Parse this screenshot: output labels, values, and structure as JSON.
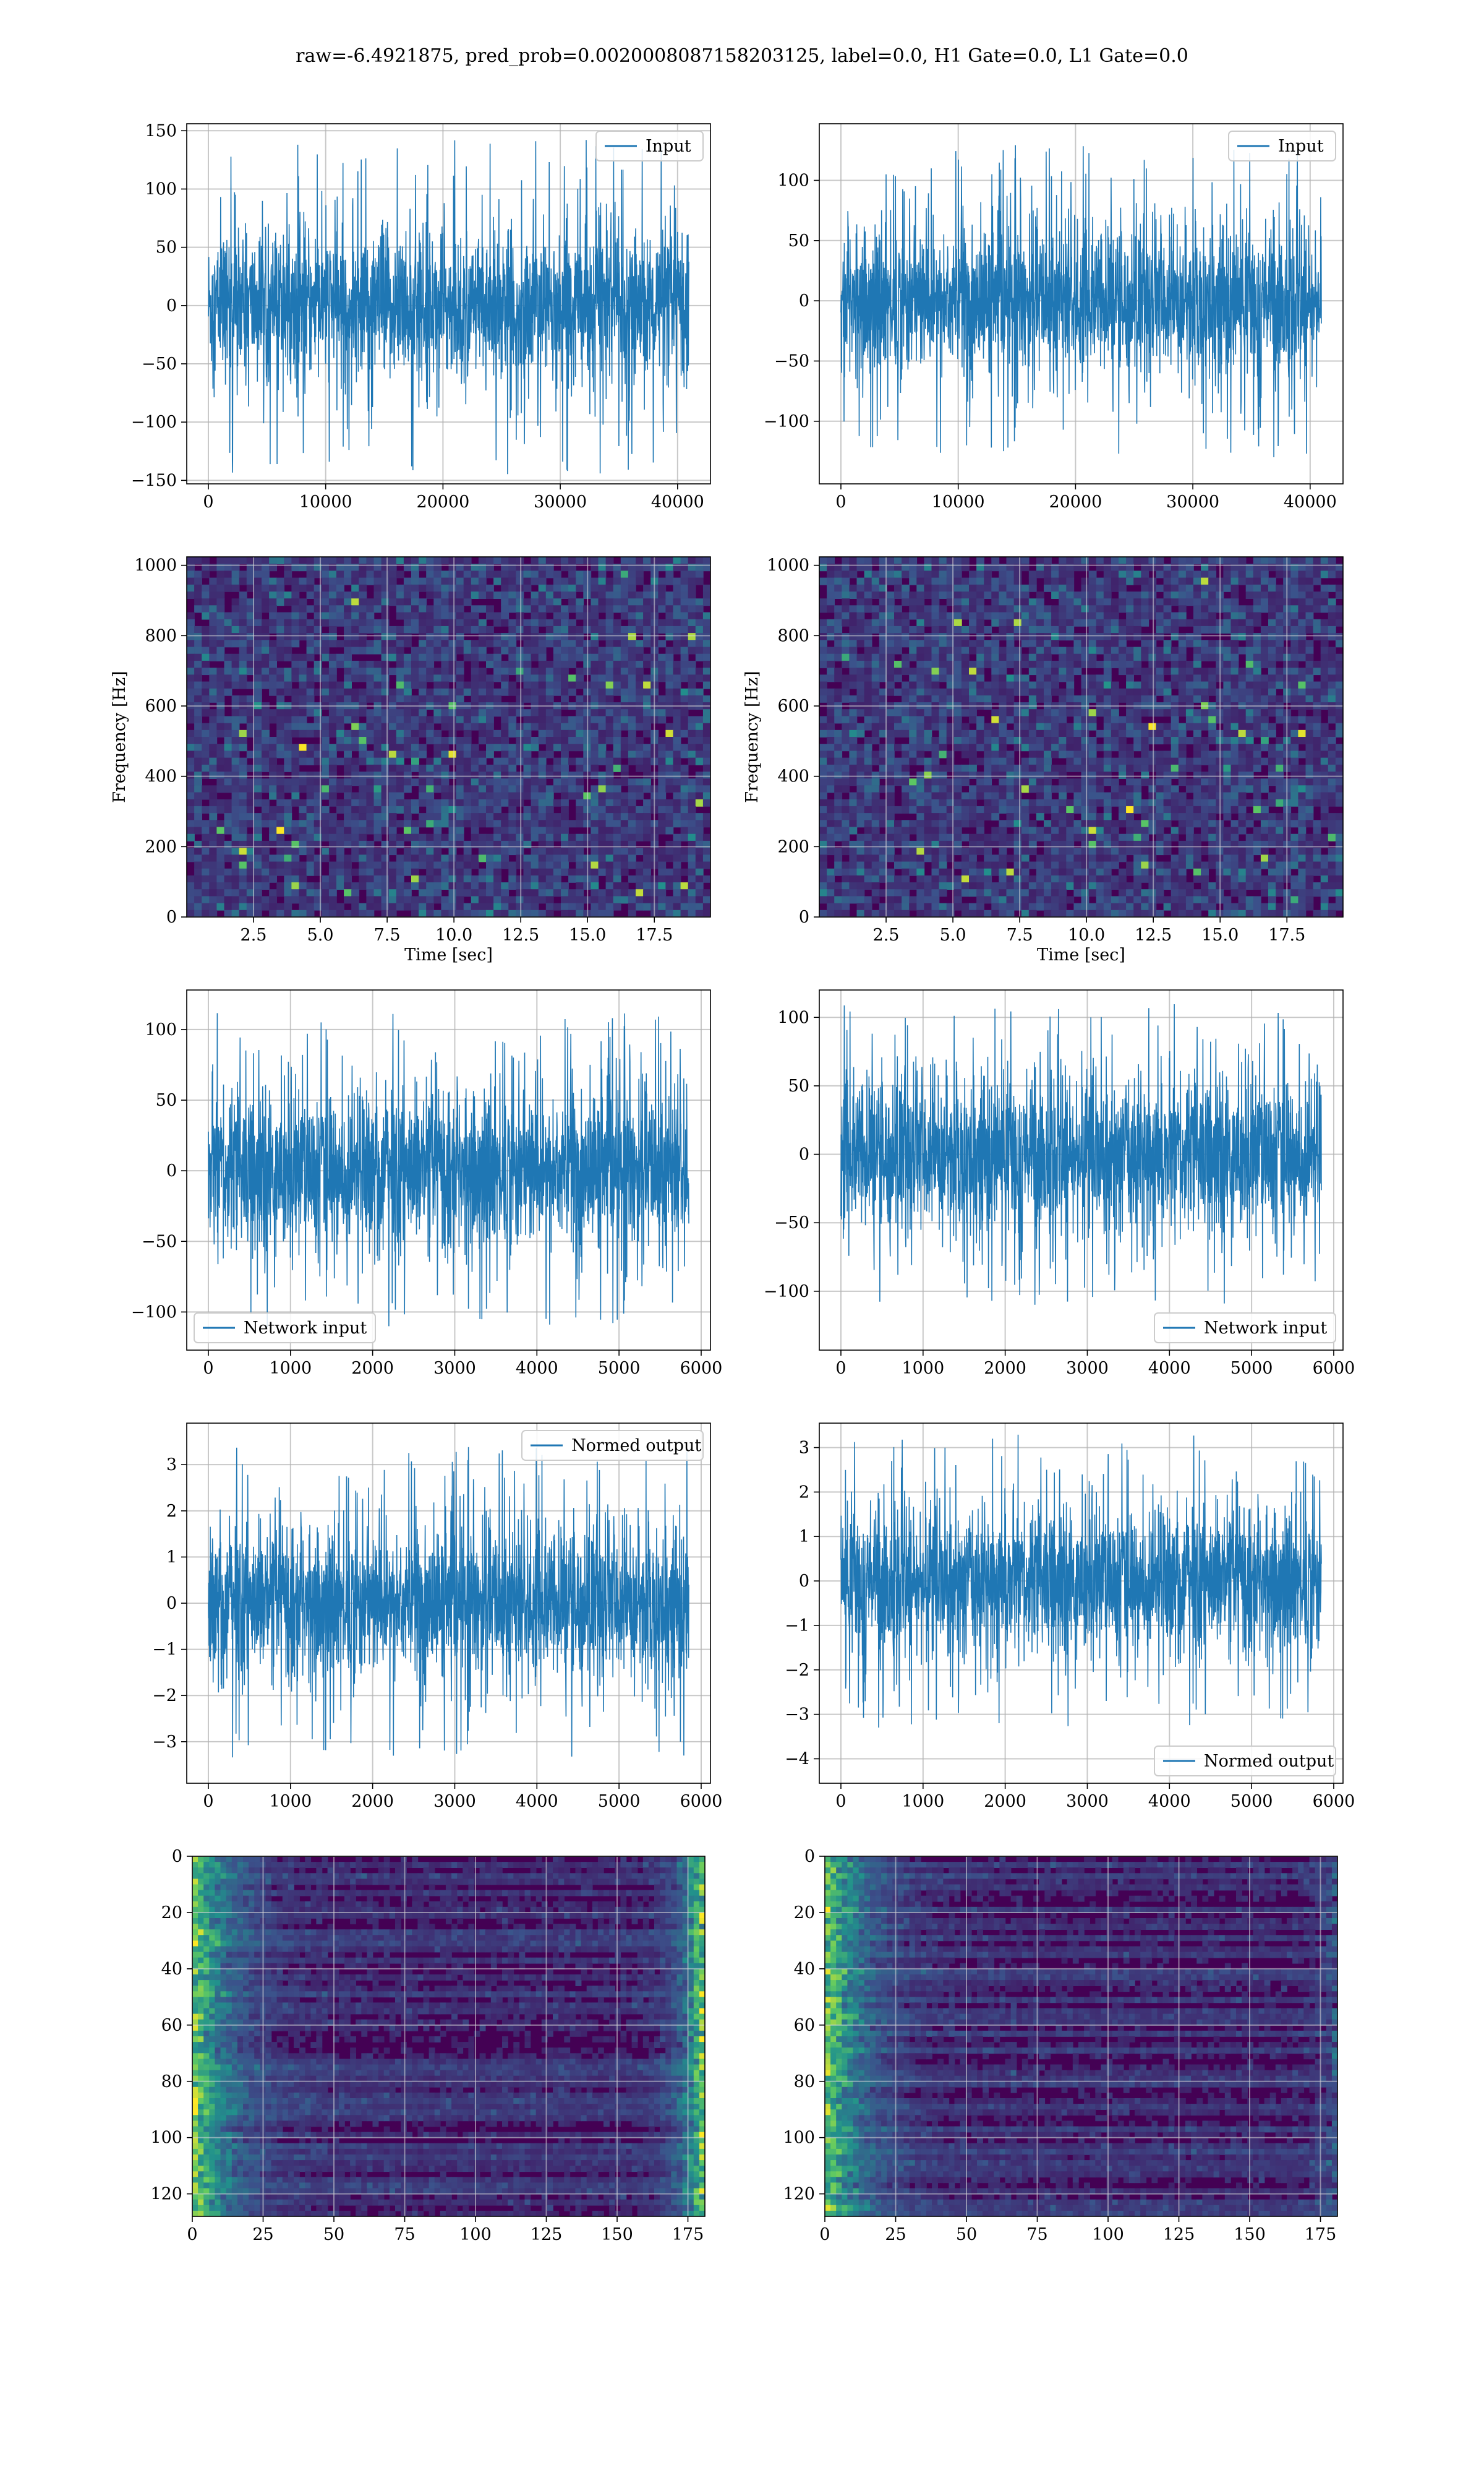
{
  "suptitle": "raw=-6.4921875, pred_prob=0.0020008087158203125, label=0.0, H1 Gate=0.0, L1 Gate=0.0",
  "colors": {
    "series": "#1f77b4",
    "grid": "#b0b0b0",
    "viridis_dark": "#440154",
    "viridis_mid": "#31688e",
    "viridis_teal": "#35b779",
    "viridis_yellow": "#fde725"
  },
  "chart_data": [
    {
      "type": "line",
      "series": [
        {
          "name": "Input",
          "color": "#1f77b4"
        }
      ],
      "x_range": [
        0,
        40960
      ],
      "ylim": [
        -153,
        156
      ],
      "xticks": [
        "0",
        "10000",
        "20000",
        "30000",
        "40000"
      ],
      "xtick_values": [
        0,
        10000,
        20000,
        30000,
        40000
      ],
      "yticks": [
        "−150",
        "−100",
        "−50",
        "0",
        "50",
        "100",
        "150"
      ],
      "ytick_values": [
        -150,
        -100,
        -50,
        0,
        50,
        100,
        150
      ],
      "envelope": {
        "core": 60,
        "peak": 145
      },
      "legend": "upper right",
      "grid": true
    },
    {
      "type": "line",
      "series": [
        {
          "name": "Input",
          "color": "#1f77b4"
        }
      ],
      "x_range": [
        0,
        40960
      ],
      "ylim": [
        -152,
        147
      ],
      "xticks": [
        "0",
        "10000",
        "20000",
        "30000",
        "40000"
      ],
      "xtick_values": [
        0,
        10000,
        20000,
        30000,
        40000
      ],
      "yticks": [
        "−100",
        "−50",
        "0",
        "50",
        "100"
      ],
      "ytick_values": [
        -100,
        -50,
        0,
        50,
        100
      ],
      "envelope": {
        "core": 60,
        "peak": 130
      },
      "legend": "upper right",
      "grid": true
    },
    {
      "type": "heatmap",
      "xlim": [
        0,
        19.6
      ],
      "ylim": [
        0,
        1024
      ],
      "xlabel": "Time [sec]",
      "ylabel": "Frequency [Hz]",
      "xticks": [
        "2.5",
        "5.0",
        "7.5",
        "10.0",
        "12.5",
        "15.0",
        "17.5"
      ],
      "xtick_values": [
        2.5,
        5.0,
        7.5,
        10.0,
        12.5,
        15.0,
        17.5
      ],
      "yticks": [
        "0",
        "200",
        "400",
        "600",
        "800",
        "1000"
      ],
      "ytick_values": [
        0,
        200,
        400,
        600,
        800,
        1000
      ],
      "colormap": "viridis",
      "grid": true
    },
    {
      "type": "heatmap",
      "xlim": [
        0,
        19.6
      ],
      "ylim": [
        0,
        1024
      ],
      "xlabel": "Time [sec]",
      "ylabel": "Frequency [Hz]",
      "xticks": [
        "2.5",
        "5.0",
        "7.5",
        "10.0",
        "12.5",
        "15.0",
        "17.5"
      ],
      "xtick_values": [
        2.5,
        5.0,
        7.5,
        10.0,
        12.5,
        15.0,
        17.5
      ],
      "yticks": [
        "0",
        "200",
        "400",
        "600",
        "800",
        "1000"
      ],
      "ytick_values": [
        0,
        200,
        400,
        600,
        800,
        1000
      ],
      "colormap": "viridis",
      "grid": true
    },
    {
      "type": "line",
      "series": [
        {
          "name": "Network input",
          "color": "#1f77b4"
        }
      ],
      "x_range": [
        0,
        5850
      ],
      "ylim": [
        -127,
        128
      ],
      "xticks": [
        "0",
        "1000",
        "2000",
        "3000",
        "4000",
        "5000",
        "6000"
      ],
      "xtick_values": [
        0,
        1000,
        2000,
        3000,
        4000,
        5000,
        6000
      ],
      "yticks": [
        "−100",
        "−50",
        "0",
        "50",
        "100"
      ],
      "ytick_values": [
        -100,
        -50,
        0,
        50,
        100
      ],
      "envelope": {
        "core": 55,
        "peak": 112
      },
      "legend": "lower left",
      "grid": true
    },
    {
      "type": "line",
      "series": [
        {
          "name": "Network input",
          "color": "#1f77b4"
        }
      ],
      "x_range": [
        0,
        5850
      ],
      "ylim": [
        -143,
        120
      ],
      "xticks": [
        "0",
        "1000",
        "2000",
        "3000",
        "4000",
        "5000",
        "6000"
      ],
      "xtick_values": [
        0,
        1000,
        2000,
        3000,
        4000,
        5000,
        6000
      ],
      "yticks": [
        "−100",
        "−50",
        "0",
        "50",
        "100"
      ],
      "ytick_values": [
        -100,
        -50,
        0,
        50,
        100
      ],
      "envelope": {
        "core": 55,
        "peak": 110
      },
      "legend": "lower right",
      "grid": true
    },
    {
      "type": "line",
      "series": [
        {
          "name": "Normed output",
          "color": "#1f77b4"
        }
      ],
      "x_range": [
        0,
        5850
      ],
      "ylim": [
        -3.9,
        3.9
      ],
      "xticks": [
        "0",
        "1000",
        "2000",
        "3000",
        "4000",
        "5000",
        "6000"
      ],
      "xtick_values": [
        0,
        1000,
        2000,
        3000,
        4000,
        5000,
        6000
      ],
      "yticks": [
        "−3",
        "−2",
        "−1",
        "0",
        "1",
        "2",
        "3"
      ],
      "ytick_values": [
        -3,
        -2,
        -1,
        0,
        1,
        2,
        3
      ],
      "envelope": {
        "core": 1.6,
        "peak": 3.4
      },
      "legend": "upper right",
      "grid": true
    },
    {
      "type": "line",
      "series": [
        {
          "name": "Normed output",
          "color": "#1f77b4"
        }
      ],
      "x_range": [
        0,
        5850
      ],
      "ylim": [
        -4.55,
        3.55
      ],
      "xticks": [
        "0",
        "1000",
        "2000",
        "3000",
        "4000",
        "5000",
        "6000"
      ],
      "xtick_values": [
        0,
        1000,
        2000,
        3000,
        4000,
        5000,
        6000
      ],
      "yticks": [
        "−4",
        "−3",
        "−2",
        "−1",
        "0",
        "1",
        "2",
        "3"
      ],
      "ytick_values": [
        -4,
        -3,
        -2,
        -1,
        0,
        1,
        2,
        3
      ],
      "envelope": {
        "core": 1.6,
        "peak": 3.3
      },
      "legend": "lower right",
      "grid": true
    },
    {
      "type": "heatmap",
      "xlim": [
        0,
        181
      ],
      "ylim": [
        128,
        0
      ],
      "xticks": [
        "0",
        "25",
        "50",
        "75",
        "100",
        "125",
        "150",
        "175"
      ],
      "xtick_values": [
        0,
        25,
        50,
        75,
        100,
        125,
        150,
        175
      ],
      "yticks": [
        "0",
        "20",
        "40",
        "60",
        "80",
        "100",
        "120"
      ],
      "ytick_values": [
        0,
        20,
        40,
        60,
        80,
        100,
        120
      ],
      "colormap": "viridis",
      "grid": true
    },
    {
      "type": "heatmap",
      "xlim": [
        0,
        181
      ],
      "ylim": [
        128,
        0
      ],
      "xticks": [
        "0",
        "25",
        "50",
        "75",
        "100",
        "125",
        "150",
        "175"
      ],
      "xtick_values": [
        0,
        25,
        50,
        75,
        100,
        125,
        150,
        175
      ],
      "yticks": [
        "0",
        "20",
        "40",
        "60",
        "80",
        "100",
        "120"
      ],
      "ytick_values": [
        0,
        20,
        40,
        60,
        80,
        100,
        120
      ],
      "colormap": "viridis",
      "grid": true
    }
  ]
}
